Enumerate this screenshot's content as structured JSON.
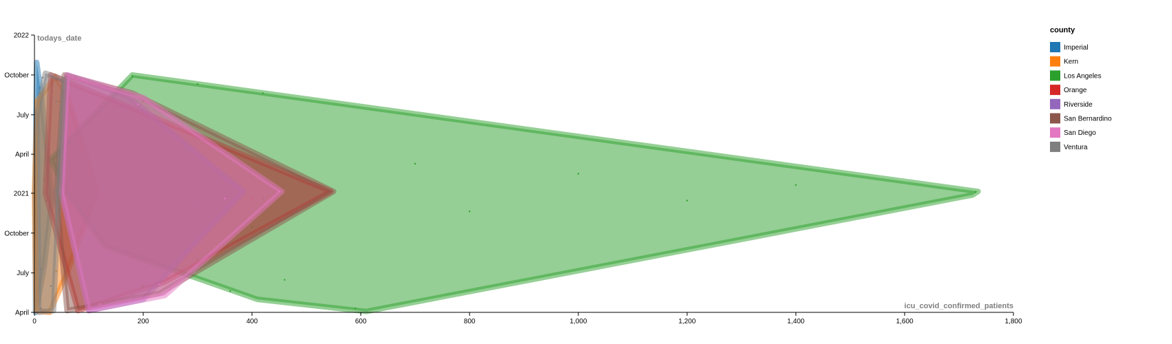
{
  "chart_data": {
    "type": "scatter",
    "xlabel": "icu_covid_confirmed_patients",
    "ylabel": "todays_date",
    "xlim": [
      0,
      1800
    ],
    "x_ticks": [
      {
        "value": 0,
        "label": "0"
      },
      {
        "value": 200,
        "label": "200"
      },
      {
        "value": 400,
        "label": "400"
      },
      {
        "value": 600,
        "label": "600"
      },
      {
        "value": 800,
        "label": "800"
      },
      {
        "value": 1000,
        "label": "1,000"
      },
      {
        "value": 1200,
        "label": "1,200"
      },
      {
        "value": 1400,
        "label": "1,400"
      },
      {
        "value": 1600,
        "label": "1,600"
      },
      {
        "value": 1800,
        "label": "1,800"
      }
    ],
    "y_ticks": [
      {
        "value": "2020-04-01",
        "label": "April"
      },
      {
        "value": "2020-07-01",
        "label": "July"
      },
      {
        "value": "2020-10-01",
        "label": "October"
      },
      {
        "value": "2021-01-01",
        "label": "2021"
      },
      {
        "value": "2021-04-01",
        "label": "April"
      },
      {
        "value": "2021-07-01",
        "label": "July"
      },
      {
        "value": "2021-10-01",
        "label": "October"
      },
      {
        "value": "2022-01-01",
        "label": "2022"
      }
    ],
    "ylim": [
      "2020-04-01",
      "2022-01-01"
    ],
    "legend_position": "right",
    "legend_title": "county",
    "series": [
      {
        "name": "Imperial",
        "color": "#1f77b4",
        "hull": [
          [
            2,
            "2020-04-01"
          ],
          [
            18,
            "2020-07-15"
          ],
          [
            32,
            "2020-12-20"
          ],
          [
            12,
            "2021-08-20"
          ],
          [
            4,
            "2021-10-30"
          ],
          [
            1,
            "2021-01-01"
          ]
        ],
        "points": [
          [
            5,
            "2020-05-01"
          ],
          [
            12,
            "2020-07-10"
          ],
          [
            22,
            "2020-12-15"
          ],
          [
            18,
            "2021-02-01"
          ],
          [
            8,
            "2021-06-01"
          ],
          [
            10,
            "2021-09-01"
          ]
        ]
      },
      {
        "name": "Kern",
        "color": "#ff7f0e",
        "hull": [
          [
            3,
            "2020-04-05"
          ],
          [
            28,
            "2020-04-01"
          ],
          [
            60,
            "2020-07-01"
          ],
          [
            115,
            "2021-01-05"
          ],
          [
            62,
            "2021-08-10"
          ],
          [
            38,
            "2021-09-28"
          ],
          [
            5,
            "2021-08-01"
          ],
          [
            0,
            "2021-01-01"
          ]
        ],
        "points": [
          [
            10,
            "2020-05-01"
          ],
          [
            40,
            "2020-07-05"
          ],
          [
            95,
            "2020-12-20"
          ],
          [
            110,
            "2021-01-03"
          ],
          [
            70,
            "2021-02-10"
          ],
          [
            20,
            "2021-05-01"
          ],
          [
            45,
            "2021-08-01"
          ],
          [
            30,
            "2021-09-10"
          ]
        ]
      },
      {
        "name": "Los Angeles",
        "color": "#2ca02c",
        "hull": [
          [
            30,
            "2021-03-20"
          ],
          [
            180,
            "2021-10-01"
          ],
          [
            1735,
            "2021-01-05"
          ],
          [
            1725,
            "2020-12-28"
          ],
          [
            610,
            "2020-04-03"
          ],
          [
            410,
            "2020-05-01"
          ],
          [
            130,
            "2020-09-01"
          ],
          [
            60,
            "2021-01-01"
          ]
        ],
        "points": [
          [
            180,
            "2021-09-28"
          ],
          [
            300,
            "2021-09-10"
          ],
          [
            420,
            "2021-08-20"
          ],
          [
            1730,
            "2021-01-04"
          ],
          [
            1400,
            "2021-01-20"
          ],
          [
            1000,
            "2021-02-15"
          ],
          [
            700,
            "2021-03-10"
          ],
          [
            1200,
            "2020-12-15"
          ],
          [
            800,
            "2020-11-20"
          ],
          [
            400,
            "2020-10-15"
          ],
          [
            590,
            "2020-04-10"
          ],
          [
            460,
            "2020-06-15"
          ],
          [
            360,
            "2020-05-20"
          ],
          [
            300,
            "2020-08-01"
          ]
        ]
      },
      {
        "name": "Orange",
        "color": "#d62728",
        "hull": [
          [
            30,
            "2021-10-01"
          ],
          [
            150,
            "2021-08-01"
          ],
          [
            545,
            "2021-01-05"
          ],
          [
            240,
            "2020-06-10"
          ],
          [
            80,
            "2020-04-05"
          ],
          [
            20,
            "2021-01-01"
          ]
        ],
        "points": [
          [
            40,
            "2021-09-20"
          ],
          [
            120,
            "2021-07-20"
          ],
          [
            540,
            "2021-01-05"
          ],
          [
            400,
            "2020-12-20"
          ],
          [
            230,
            "2020-06-10"
          ],
          [
            100,
            "2020-04-20"
          ]
        ]
      },
      {
        "name": "Riverside",
        "color": "#9467bd",
        "hull": [
          [
            60,
            "2021-10-01"
          ],
          [
            170,
            "2021-08-15"
          ],
          [
            385,
            "2021-01-05"
          ],
          [
            200,
            "2020-05-01"
          ],
          [
            100,
            "2020-04-05"
          ],
          [
            50,
            "2021-01-01"
          ]
        ],
        "points": [
          [
            80,
            "2021-09-20"
          ],
          [
            160,
            "2021-07-20"
          ],
          [
            380,
            "2021-01-05"
          ],
          [
            300,
            "2020-12-15"
          ],
          [
            180,
            "2020-05-10"
          ],
          [
            110,
            "2020-04-15"
          ]
        ]
      },
      {
        "name": "San Bernardino",
        "color": "#8c564b",
        "hull": [
          [
            55,
            "2021-10-01"
          ],
          [
            180,
            "2021-08-20"
          ],
          [
            550,
            "2021-01-05"
          ],
          [
            230,
            "2020-05-15"
          ],
          [
            60,
            "2020-04-05"
          ],
          [
            40,
            "2021-01-01"
          ]
        ],
        "points": [
          [
            75,
            "2021-09-25"
          ],
          [
            200,
            "2021-08-01"
          ],
          [
            545,
            "2021-01-05"
          ],
          [
            420,
            "2020-12-20"
          ],
          [
            200,
            "2020-06-01"
          ],
          [
            80,
            "2020-04-15"
          ]
        ]
      },
      {
        "name": "San Diego",
        "color": "#e377c2",
        "hull": [
          [
            60,
            "2021-10-01"
          ],
          [
            200,
            "2021-08-10"
          ],
          [
            455,
            "2021-01-05"
          ],
          [
            240,
            "2020-05-10"
          ],
          [
            100,
            "2020-04-05"
          ],
          [
            50,
            "2021-01-01"
          ]
        ],
        "points": [
          [
            90,
            "2021-09-20"
          ],
          [
            190,
            "2021-07-25"
          ],
          [
            450,
            "2021-01-05"
          ],
          [
            350,
            "2020-12-20"
          ],
          [
            230,
            "2020-06-05"
          ],
          [
            120,
            "2020-04-20"
          ]
        ]
      },
      {
        "name": "Ventura",
        "color": "#7f7f7f",
        "hull": [
          [
            5,
            "2021-07-01"
          ],
          [
            20,
            "2021-10-05"
          ],
          [
            55,
            "2021-09-20"
          ],
          [
            45,
            "2021-01-01"
          ],
          [
            35,
            "2020-04-05"
          ],
          [
            8,
            "2020-04-01"
          ]
        ],
        "points": [
          [
            15,
            "2021-09-25"
          ],
          [
            40,
            "2021-08-01"
          ],
          [
            40,
            "2021-01-05"
          ],
          [
            30,
            "2020-06-01"
          ],
          [
            12,
            "2020-04-10"
          ]
        ]
      }
    ]
  }
}
